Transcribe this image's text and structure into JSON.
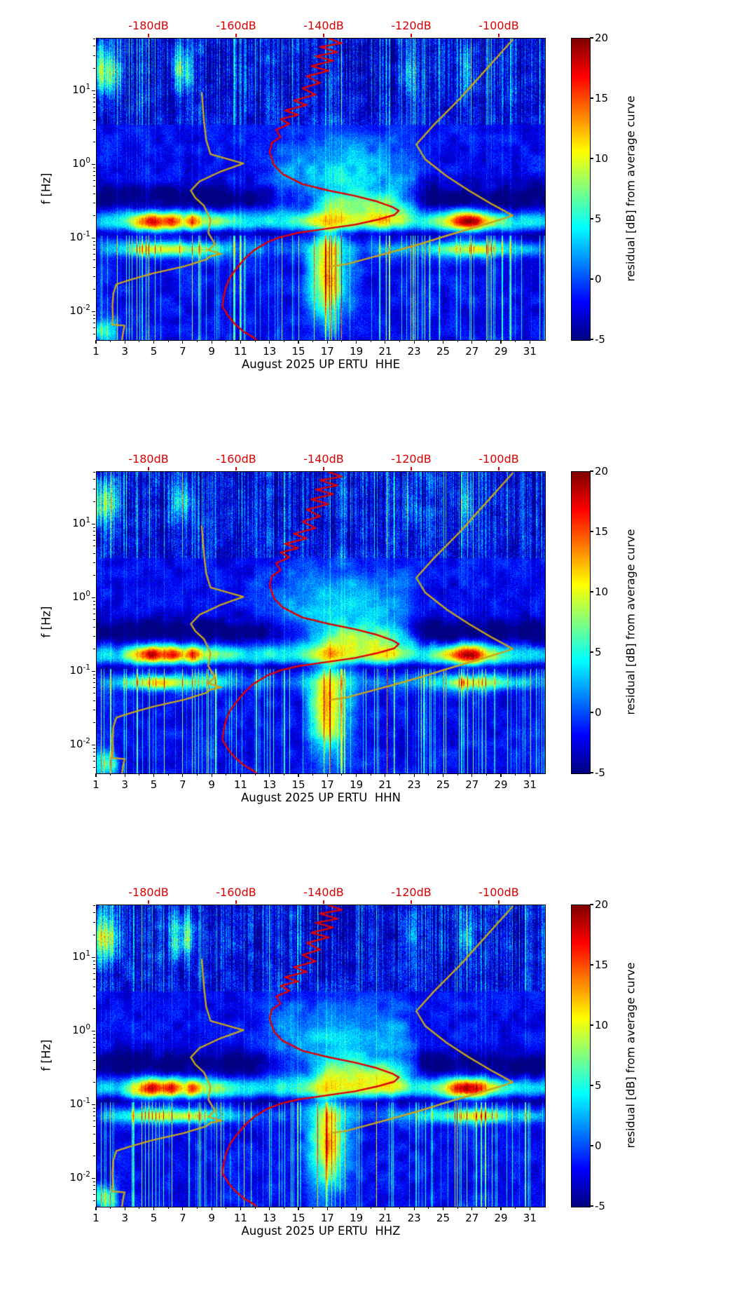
{
  "chart_data": {
    "type": "heatmap",
    "subtype": "seismic spectral residual spectrograms with PSD overlay curves",
    "station": "UP ERTU",
    "month": "August 2025",
    "panels": [
      {
        "channel": "HHE",
        "xlabel": "August 2025 UP ERTU  HHE"
      },
      {
        "channel": "HHN",
        "xlabel": "August 2025 UP ERTU  HHN"
      },
      {
        "channel": "HHZ",
        "xlabel": "August 2025 UP ERTU  HHZ"
      }
    ],
    "x": {
      "range_days": [
        1,
        32
      ],
      "major_ticks": [
        1,
        3,
        5,
        7,
        9,
        11,
        13,
        15,
        17,
        19,
        21,
        23,
        25,
        27,
        29,
        31
      ],
      "minor_ticks_every_day": true
    },
    "y": {
      "label": "f [Hz]",
      "scale": "log",
      "range_hz": [
        0.0042,
        52
      ],
      "tick_exponents": [
        1,
        0,
        -1,
        -2
      ]
    },
    "top_axis": {
      "color": "#dd0000",
      "db_range": [
        -192,
        -89.6
      ],
      "ticks": [
        {
          "db": -180,
          "label": "-180dB"
        },
        {
          "db": -160,
          "label": "-160dB"
        },
        {
          "db": -140,
          "label": "-140dB"
        },
        {
          "db": -120,
          "label": "-120dB"
        },
        {
          "db": -100,
          "label": "-100dB"
        }
      ]
    },
    "colorbar": {
      "label": "residual [dB] from average curve",
      "vmin": -5,
      "vmax": 20,
      "ticks": [
        20,
        15,
        10,
        5,
        0,
        -5
      ],
      "colormap": "jet"
    },
    "curves": {
      "median_psd": {
        "color": "#e00000",
        "width": 2.4,
        "points_f_hz_db": [
          [
            52,
            -139
          ],
          [
            45,
            -136
          ],
          [
            40,
            -141
          ],
          [
            34,
            -137
          ],
          [
            30,
            -142
          ],
          [
            26,
            -138
          ],
          [
            22,
            -143
          ],
          [
            19,
            -139
          ],
          [
            16,
            -144
          ],
          [
            13,
            -141
          ],
          [
            11,
            -145
          ],
          [
            9,
            -142
          ],
          [
            7.5,
            -147
          ],
          [
            6.5,
            -144
          ],
          [
            5.5,
            -149
          ],
          [
            4.8,
            -146
          ],
          [
            4.2,
            -150
          ],
          [
            3.6,
            -148
          ],
          [
            3,
            -151
          ],
          [
            2.4,
            -150
          ],
          [
            2,
            -152
          ],
          [
            1.5,
            -152.5
          ],
          [
            1,
            -151.5
          ],
          [
            0.75,
            -149.5
          ],
          [
            0.55,
            -145
          ],
          [
            0.45,
            -139
          ],
          [
            0.38,
            -133
          ],
          [
            0.32,
            -128
          ],
          [
            0.27,
            -124.5
          ],
          [
            0.24,
            -123
          ],
          [
            0.21,
            -124
          ],
          [
            0.18,
            -128
          ],
          [
            0.155,
            -133
          ],
          [
            0.135,
            -140
          ],
          [
            0.12,
            -146
          ],
          [
            0.105,
            -150
          ],
          [
            0.09,
            -153
          ],
          [
            0.07,
            -156
          ],
          [
            0.055,
            -158
          ],
          [
            0.04,
            -160
          ],
          [
            0.03,
            -161.5
          ],
          [
            0.022,
            -162.5
          ],
          [
            0.016,
            -163
          ],
          [
            0.012,
            -163.3
          ],
          [
            0.009,
            -162
          ],
          [
            0.007,
            -160.5
          ],
          [
            0.0055,
            -158.5
          ],
          [
            0.0045,
            -156
          ],
          [
            0.0042,
            -155.5
          ]
        ]
      },
      "model_upper": {
        "color": "#c7a41f",
        "width": 2.4,
        "points_f_hz_db": [
          [
            50,
            -97
          ],
          [
            20,
            -103
          ],
          [
            8,
            -109
          ],
          [
            3.5,
            -115
          ],
          [
            1.9,
            -119
          ],
          [
            1.2,
            -117
          ],
          [
            0.7,
            -112
          ],
          [
            0.45,
            -107
          ],
          [
            0.3,
            -102
          ],
          [
            0.24,
            -99
          ],
          [
            0.205,
            -97
          ],
          [
            0.18,
            -100
          ],
          [
            0.14,
            -106
          ],
          [
            0.11,
            -112
          ],
          [
            0.085,
            -118
          ],
          [
            0.065,
            -125
          ],
          [
            0.052,
            -131
          ],
          [
            0.045,
            -135
          ],
          [
            0.042,
            -138.5
          ]
        ]
      },
      "model_lower": {
        "color": "#c7a41f",
        "width": 2.4,
        "points_f_hz_db": [
          [
            9.5,
            -168
          ],
          [
            4,
            -167.5
          ],
          [
            2.2,
            -167
          ],
          [
            1.4,
            -166
          ],
          [
            1.05,
            -158.5
          ],
          [
            0.8,
            -164
          ],
          [
            0.6,
            -168.5
          ],
          [
            0.45,
            -170.5
          ],
          [
            0.36,
            -169.5
          ],
          [
            0.28,
            -167.5
          ],
          [
            0.18,
            -166
          ],
          [
            0.12,
            -166.5
          ],
          [
            0.085,
            -165
          ],
          [
            0.07,
            -166.5
          ],
          [
            0.062,
            -163.5
          ],
          [
            0.058,
            -166
          ],
          [
            0.052,
            -167
          ],
          [
            0.042,
            -172
          ],
          [
            0.034,
            -179
          ],
          [
            0.028,
            -184
          ],
          [
            0.024,
            -187.5
          ],
          [
            0.018,
            -188.2
          ],
          [
            0.012,
            -188.4
          ],
          [
            0.0085,
            -188.3
          ],
          [
            0.0068,
            -188.5
          ],
          [
            0.0066,
            -185.6
          ],
          [
            0.006,
            -185.8
          ],
          [
            0.0052,
            -186
          ],
          [
            0.0042,
            -186.2
          ]
        ]
      }
    },
    "heatmap_features": [
      {
        "name": "primary_microseism_band",
        "lf_center": -0.76,
        "lf_sigma": 0.1,
        "days": [
          1,
          2.5,
          4,
          4.8,
          5.5,
          6.2,
          7,
          7.6,
          8.3,
          9.2,
          10,
          11,
          13,
          15,
          17,
          19,
          21,
          22,
          23,
          24,
          25,
          25.8,
          26.5,
          27.3,
          28,
          29,
          30,
          32
        ],
        "amps": [
          5,
          6,
          15,
          21,
          17,
          20,
          13,
          19,
          11,
          10,
          8,
          6,
          6,
          7,
          9,
          9,
          11,
          9,
          6,
          7,
          11,
          18,
          22,
          20,
          13,
          8,
          6,
          5
        ]
      },
      {
        "name": "secondary_band",
        "lf_center": -1.14,
        "lf_sigma": 0.07,
        "days": [
          1,
          3.5,
          4.5,
          5.5,
          6.5,
          7.5,
          8.5,
          9.5,
          11,
          14,
          20,
          24,
          25.5,
          26.5,
          27.5,
          28.5,
          29.5,
          32
        ],
        "amps": [
          2,
          8,
          12,
          13,
          11,
          10,
          9,
          7,
          3,
          2,
          3,
          5,
          9,
          12,
          12,
          10,
          6,
          3
        ]
      },
      {
        "name": "dark_mid_band",
        "lf_center": -0.45,
        "lf_sigma": 0.13,
        "days": [
          1,
          12.5,
          14,
          21.5,
          23,
          32
        ],
        "amps": [
          -4,
          -4,
          -2,
          -2,
          -4,
          -4
        ]
      },
      {
        "name": "dark_line_below_band",
        "lf_center": -0.93,
        "lf_sigma": 0.05,
        "days": [
          1,
          32
        ],
        "amps": [
          -3,
          -3
        ]
      },
      {
        "name": "mid_cyan_cloud",
        "lf_center": -0.15,
        "lf_sigma": 0.38,
        "days": [
          11.5,
          13.5,
          16,
          18,
          20,
          22,
          23.5
        ],
        "amps": [
          0,
          3,
          5,
          6,
          5,
          4,
          0
        ]
      },
      {
        "name": "green_arc",
        "lf_center": -0.52,
        "lf_sigma": 0.12,
        "days": [
          15.5,
          17,
          19,
          21,
          22.5,
          24
        ],
        "amps": [
          0,
          6,
          8,
          8,
          5,
          0
        ]
      },
      {
        "name": "low_freq_warm_blob",
        "lf_center": -1.5,
        "lf_sigma": 0.42,
        "days": [
          15,
          16,
          16.8,
          17.4,
          18.2,
          19.5
        ],
        "amps": [
          0,
          8,
          15,
          13,
          5,
          0
        ]
      },
      {
        "name": "top_cyan_patches",
        "lf_center": 1.3,
        "lf_sigma": 0.22,
        "days": [
          1,
          1.8,
          2.6,
          3.2,
          5.8,
          6.4,
          7.2,
          8,
          21.8,
          22.6,
          23.4,
          25.8,
          26.6,
          27.4,
          32
        ],
        "amps": [
          9,
          10,
          5,
          0,
          0,
          7,
          8,
          0,
          0,
          5,
          0,
          0,
          6,
          0,
          0
        ]
      },
      {
        "name": "bottom_left_patch",
        "lf_center": -2.25,
        "lf_sigma": 0.12,
        "days": [
          1,
          1.6,
          2.2,
          2.6,
          32
        ],
        "amps": [
          6,
          8,
          6,
          0,
          0
        ]
      }
    ]
  }
}
